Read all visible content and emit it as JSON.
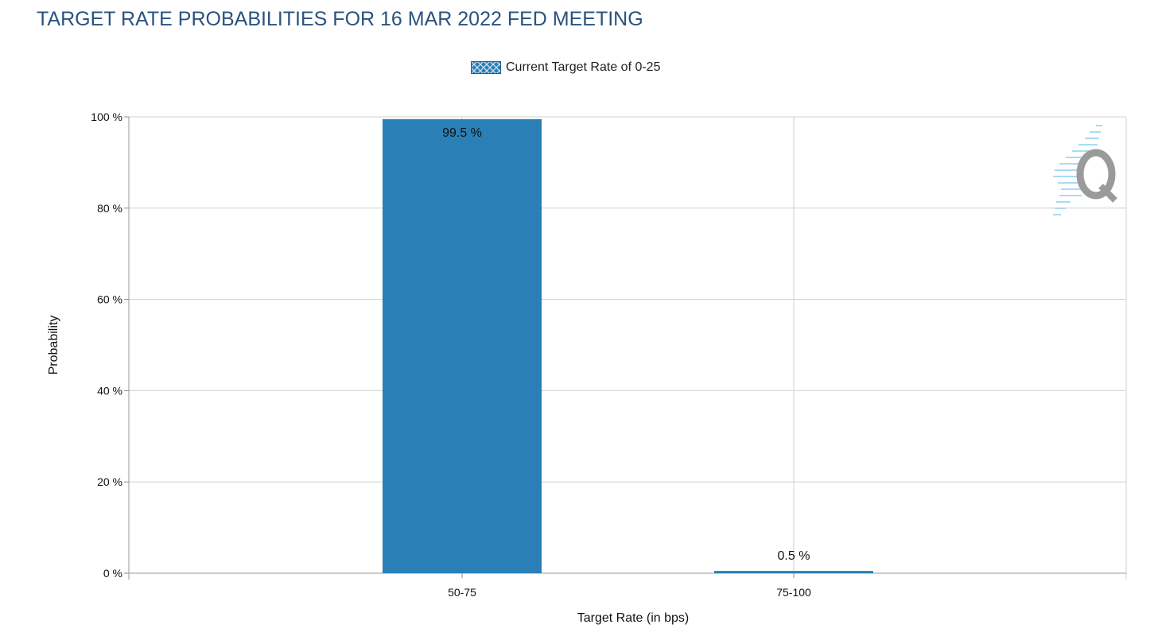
{
  "title": "TARGET RATE PROBABILITIES FOR 16 MAR 2022 FED MEETING",
  "legend": {
    "label": "Current Target Rate of 0-25"
  },
  "colors": {
    "bar": "#2a7fb6",
    "title": "#2a5280",
    "grid": "#d0d0d0",
    "watermark": "#9a9a9a",
    "watermark_lines": "#a8dcf2"
  },
  "watermark_icon": "q-logo-icon",
  "chart_data": {
    "type": "bar",
    "categories": [
      "50-75",
      "75-100"
    ],
    "values": [
      99.5,
      0.5
    ],
    "data_labels": [
      "99.5 %",
      "0.5 %"
    ],
    "xlabel": "Target Rate (in bps)",
    "ylabel": "Probability",
    "ylim": [
      0,
      100
    ],
    "yticks": [
      0,
      20,
      40,
      60,
      80,
      100
    ],
    "ytick_labels": [
      "0 %",
      "20 %",
      "40 %",
      "60 %",
      "80 %",
      "100 %"
    ],
    "grid": true
  }
}
